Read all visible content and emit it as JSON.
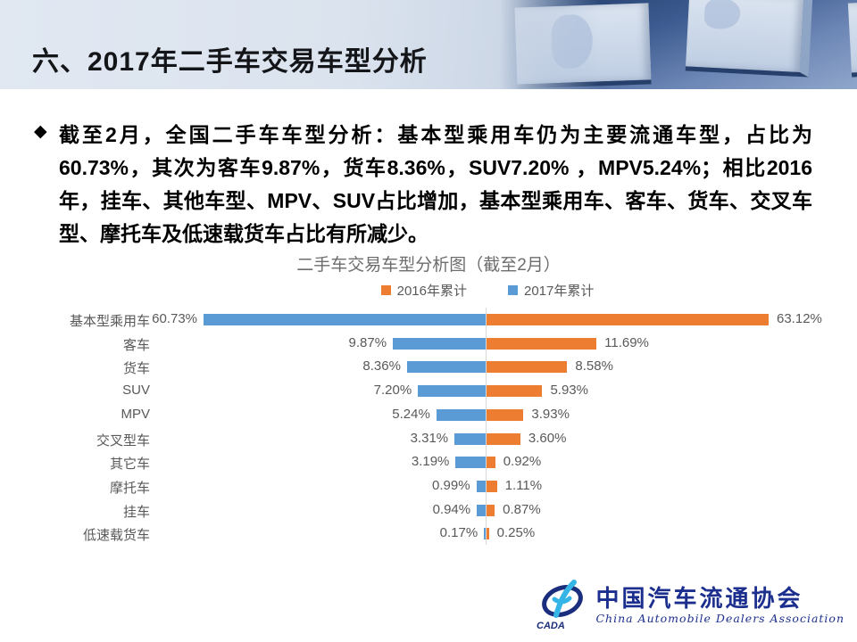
{
  "slide": {
    "title": "六、2017年二手车交易车型分析",
    "bullet_icon": "◆",
    "paragraph": "截至2月，全国二手车车型分析：基本型乘用车仍为主要流通车型，占比为60.73%，其次为客车9.87%，货车8.36%，SUV7.20% ，MPV5.24%；相比2016年，挂车、其他车型、MPV、SUV占比增加，基本型乘用车、客车、货车、交叉车型、摩托车及低速载货车占比有所减少。"
  },
  "chart_data": {
    "type": "bar",
    "orientation": "horizontal-diverging",
    "title": "二手车交易车型分析图（截至2月）",
    "categories": [
      "基本型乘用车",
      "客车",
      "货车",
      "SUV",
      "MPV",
      "交叉型车",
      "其它车",
      "摩托车",
      "挂车",
      "低速载货车"
    ],
    "series": [
      {
        "name": "2016年累计",
        "color": "#ED7D31",
        "side": "right",
        "values": [
          63.12,
          11.69,
          8.58,
          5.93,
          3.93,
          3.6,
          0.92,
          1.11,
          0.87,
          0.25
        ]
      },
      {
        "name": "2017年累计",
        "color": "#5B9BD5",
        "side": "left",
        "values": [
          60.73,
          9.87,
          8.36,
          7.2,
          5.24,
          3.31,
          3.19,
          0.99,
          0.94,
          0.17
        ]
      }
    ],
    "value_suffix": "%",
    "axis_max_percent": 30,
    "gridline_color": "#d9d9d9",
    "legend_position": "top-center",
    "data_labels": true
  },
  "logo": {
    "acronym": "CADA",
    "cn": "中国汽车流通协会",
    "en": "China Automobile Dealers Association",
    "color": "#1c2f8e",
    "accent": "#35b4e6"
  }
}
